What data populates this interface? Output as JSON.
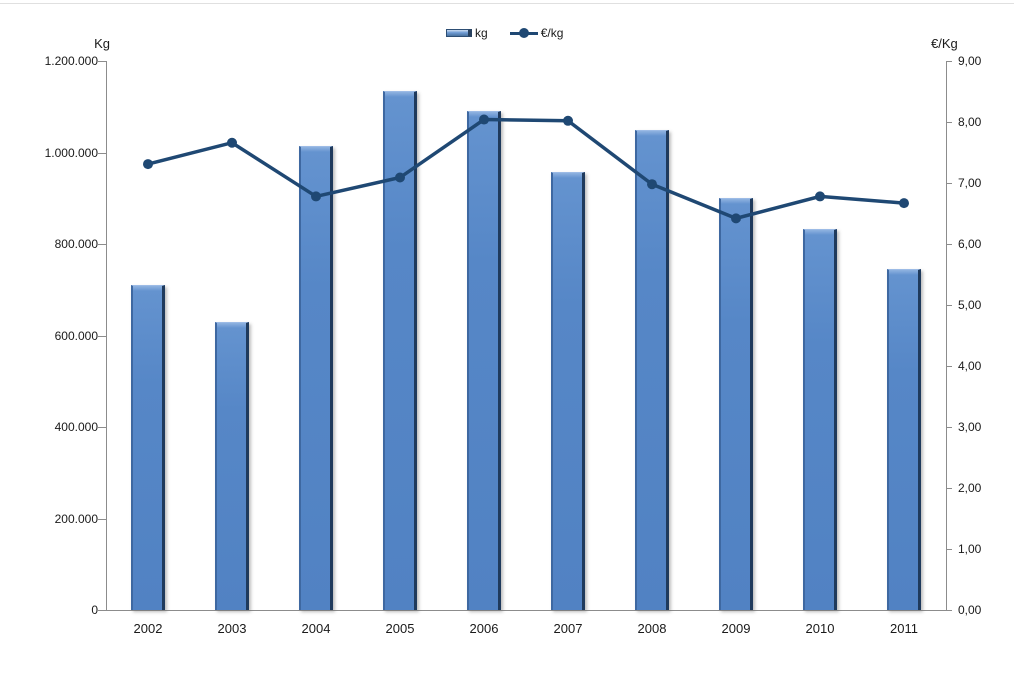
{
  "chart_data": {
    "type": "bar",
    "combo": "bar+line",
    "categories": [
      "2002",
      "2003",
      "2004",
      "2005",
      "2006",
      "2007",
      "2008",
      "2009",
      "2010",
      "2011"
    ],
    "series": [
      {
        "name": "kg",
        "type": "bar",
        "axis": "left",
        "values": [
          710000,
          630000,
          1015000,
          1135000,
          1090000,
          957000,
          1050000,
          900000,
          833000,
          745000
        ]
      },
      {
        "name": "€/kg",
        "type": "line",
        "axis": "right",
        "values": [
          7.31,
          7.66,
          6.78,
          7.09,
          8.04,
          8.02,
          6.98,
          6.42,
          6.78,
          6.67
        ]
      }
    ],
    "left_axis": {
      "title": "Kg",
      "min": 0,
      "max": 1200000,
      "step": 200000,
      "tick_labels": [
        "0",
        "200.000",
        "400.000",
        "600.000",
        "800.000",
        "1.000.000",
        "1.200.000"
      ]
    },
    "right_axis": {
      "title": "€/Kg",
      "min": 0,
      "max": 9,
      "step": 1,
      "tick_labels": [
        "0,00",
        "1,00",
        "2,00",
        "3,00",
        "4,00",
        "5,00",
        "6,00",
        "7,00",
        "8,00",
        "9,00"
      ]
    },
    "legend": {
      "position": "top",
      "entries": [
        {
          "label": "kg",
          "swatch": "bar"
        },
        {
          "label": "€/kg",
          "swatch": "line-marker"
        }
      ]
    },
    "grid": false
  },
  "colors": {
    "bar_fill": "#5687c7",
    "bar_border_dark": "#1f3a5c",
    "bar_border_light": "#9cbbe6",
    "line": "#1f4873",
    "axis": "#8c8c8c",
    "text": "#1a1a1a"
  }
}
